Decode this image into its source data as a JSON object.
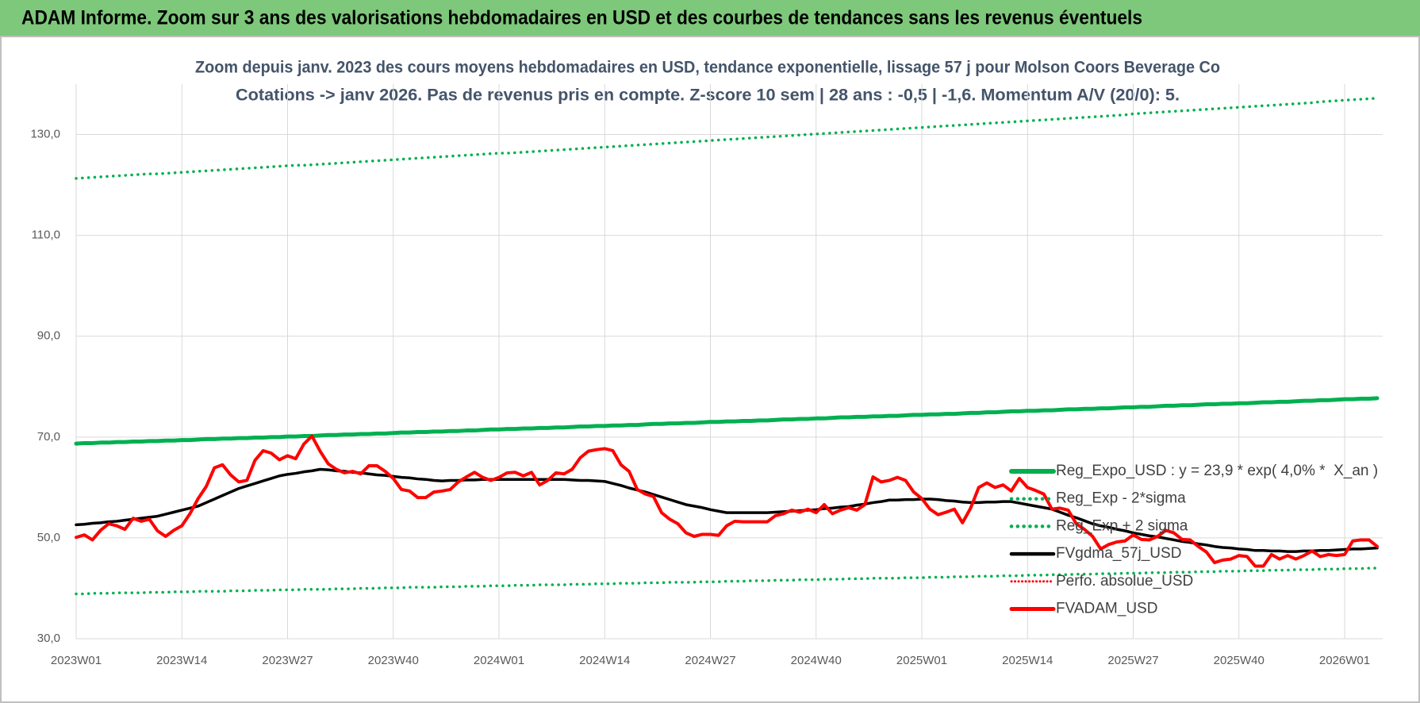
{
  "header": "ADAM Informe. Zoom sur 3 ans des valorisations hebdomadaires en USD et des courbes de tendances sans les revenus éventuels",
  "chart_data": {
    "type": "line",
    "title": "Zoom depuis janv. 2023 des cours moyens hebdomadaires en USD, tendance exponentielle, lissage 57 j pour Molson Coors Beverage Co",
    "subtitle": "Cotations -> janv 2026. Pas de revenus pris en compte. Z-score 10 sem | 28 ans : -0,5 | -1,6. Momentum A/V (20/0): 5.",
    "ylim": [
      30,
      140
    ],
    "yticks": [
      {
        "value": 30,
        "label": "30,0"
      },
      {
        "value": 50,
        "label": "50,0"
      },
      {
        "value": 70,
        "label": "70,0"
      },
      {
        "value": 90,
        "label": "90,0"
      },
      {
        "value": 110,
        "label": "110,0"
      },
      {
        "value": 130,
        "label": "130,0"
      }
    ],
    "grid": true,
    "legend": "right",
    "categories": [
      "2023W01",
      null,
      null,
      null,
      null,
      null,
      null,
      null,
      null,
      null,
      null,
      null,
      null,
      "2023W14",
      null,
      null,
      null,
      null,
      null,
      null,
      null,
      null,
      null,
      null,
      null,
      null,
      "2023W27",
      null,
      null,
      null,
      null,
      null,
      null,
      null,
      null,
      null,
      null,
      null,
      null,
      "2023W40",
      null,
      null,
      null,
      null,
      null,
      null,
      null,
      null,
      null,
      null,
      null,
      null,
      "2024W01",
      null,
      null,
      null,
      null,
      null,
      null,
      null,
      null,
      null,
      null,
      null,
      null,
      "2024W14",
      null,
      null,
      null,
      null,
      null,
      null,
      null,
      null,
      null,
      null,
      null,
      null,
      "2024W27",
      null,
      null,
      null,
      null,
      null,
      null,
      null,
      null,
      null,
      null,
      null,
      null,
      "2024W40",
      null,
      null,
      null,
      null,
      null,
      null,
      null,
      null,
      null,
      null,
      null,
      null,
      "2025W01",
      null,
      null,
      null,
      null,
      null,
      null,
      null,
      null,
      null,
      null,
      null,
      null,
      "2025W14",
      null,
      null,
      null,
      null,
      null,
      null,
      null,
      null,
      null,
      null,
      null,
      null,
      "2025W27",
      null,
      null,
      null,
      null,
      null,
      null,
      null,
      null,
      null,
      null,
      null,
      null,
      "2025W40",
      null,
      null,
      null,
      null,
      null,
      null,
      null,
      null,
      null,
      null,
      null,
      null,
      "2026W01",
      null,
      null,
      null,
      null
    ],
    "series": [
      {
        "name": "Reg_Expo_USD : y = 23,9 * exp( 4,0% *  X_an )",
        "color": "#00b050",
        "dash": "solid",
        "linewidth": 5,
        "values": [
          68.7,
          68.8,
          68.8,
          68.9,
          68.9,
          69.0,
          69.0,
          69.1,
          69.1,
          69.2,
          69.2,
          69.3,
          69.3,
          69.4,
          69.4,
          69.5,
          69.6,
          69.6,
          69.7,
          69.7,
          69.8,
          69.8,
          69.9,
          69.9,
          70.0,
          70.0,
          70.1,
          70.1,
          70.2,
          70.2,
          70.3,
          70.4,
          70.4,
          70.5,
          70.5,
          70.6,
          70.6,
          70.7,
          70.7,
          70.8,
          70.9,
          70.9,
          71.0,
          71.0,
          71.1,
          71.1,
          71.2,
          71.2,
          71.3,
          71.3,
          71.4,
          71.5,
          71.5,
          71.6,
          71.6,
          71.7,
          71.7,
          71.8,
          71.8,
          71.9,
          71.9,
          72.0,
          72.1,
          72.1,
          72.2,
          72.2,
          72.3,
          72.3,
          72.4,
          72.4,
          72.5,
          72.6,
          72.6,
          72.7,
          72.7,
          72.8,
          72.8,
          72.9,
          73.0,
          73.0,
          73.1,
          73.1,
          73.2,
          73.2,
          73.3,
          73.3,
          73.4,
          73.5,
          73.5,
          73.6,
          73.6,
          73.7,
          73.7,
          73.8,
          73.9,
          73.9,
          74.0,
          74.0,
          74.1,
          74.1,
          74.2,
          74.2,
          74.3,
          74.4,
          74.4,
          74.5,
          74.5,
          74.6,
          74.6,
          74.7,
          74.8,
          74.8,
          74.9,
          74.9,
          75.0,
          75.1,
          75.1,
          75.2,
          75.2,
          75.3,
          75.3,
          75.4,
          75.5,
          75.5,
          75.6,
          75.6,
          75.7,
          75.7,
          75.8,
          75.9,
          75.9,
          76.0,
          76.0,
          76.1,
          76.2,
          76.2,
          76.3,
          76.3,
          76.4,
          76.5,
          76.5,
          76.6,
          76.6,
          76.7,
          76.7,
          76.8,
          76.9,
          76.9,
          77.0,
          77.0,
          77.1,
          77.2,
          77.2,
          77.3,
          77.3,
          77.4,
          77.5,
          77.5,
          77.6,
          77.6,
          77.7
        ]
      },
      {
        "name": "Reg_Exp - 2*sigma",
        "color": "#00b050",
        "dash": "dotted",
        "linewidth": 3.5,
        "values": [
          38.9,
          38.9,
          39.0,
          39.0,
          39.0,
          39.1,
          39.1,
          39.1,
          39.1,
          39.2,
          39.2,
          39.2,
          39.3,
          39.3,
          39.3,
          39.4,
          39.4,
          39.4,
          39.4,
          39.5,
          39.5,
          39.5,
          39.6,
          39.6,
          39.6,
          39.7,
          39.7,
          39.7,
          39.8,
          39.8,
          39.8,
          39.8,
          39.9,
          39.9,
          39.9,
          40.0,
          40.0,
          40.0,
          40.1,
          40.1,
          40.1,
          40.2,
          40.2,
          40.2,
          40.2,
          40.3,
          40.3,
          40.3,
          40.4,
          40.4,
          40.4,
          40.5,
          40.5,
          40.5,
          40.6,
          40.6,
          40.6,
          40.7,
          40.7,
          40.7,
          40.7,
          40.8,
          40.8,
          40.8,
          40.9,
          40.9,
          40.9,
          41.0,
          41.0,
          41.0,
          41.1,
          41.1,
          41.1,
          41.2,
          41.2,
          41.2,
          41.2,
          41.3,
          41.3,
          41.3,
          41.4,
          41.4,
          41.4,
          41.5,
          41.5,
          41.5,
          41.6,
          41.6,
          41.6,
          41.7,
          41.7,
          41.7,
          41.8,
          41.8,
          41.8,
          41.9,
          41.9,
          41.9,
          42.0,
          42.0,
          42.0,
          42.0,
          42.1,
          42.1,
          42.1,
          42.2,
          42.2,
          42.2,
          42.3,
          42.3,
          42.3,
          42.4,
          42.4,
          42.4,
          42.5,
          42.5,
          42.5,
          42.6,
          42.6,
          42.6,
          42.7,
          42.7,
          42.7,
          42.8,
          42.8,
          42.8,
          42.9,
          42.9,
          42.9,
          43.0,
          43.0,
          43.0,
          43.1,
          43.1,
          43.1,
          43.2,
          43.2,
          43.2,
          43.3,
          43.3,
          43.3,
          43.4,
          43.4,
          43.4,
          43.5,
          43.5,
          43.5,
          43.6,
          43.6,
          43.6,
          43.7,
          43.7,
          43.7,
          43.8,
          43.8,
          43.8,
          43.9,
          43.9,
          43.9,
          44.0,
          44.0
        ]
      },
      {
        "name": "Reg_Exp + 2 sigma",
        "color": "#00b050",
        "dash": "dotted",
        "linewidth": 3.5,
        "values": [
          121.3,
          121.4,
          121.5,
          121.6,
          121.7,
          121.8,
          121.9,
          122.0,
          122.1,
          122.2,
          122.2,
          122.3,
          122.4,
          122.5,
          122.6,
          122.7,
          122.8,
          122.9,
          123.0,
          123.1,
          123.2,
          123.3,
          123.4,
          123.5,
          123.6,
          123.7,
          123.8,
          123.9,
          123.9,
          124.0,
          124.1,
          124.2,
          124.3,
          124.4,
          124.5,
          124.6,
          124.7,
          124.8,
          124.9,
          125.0,
          125.1,
          125.2,
          125.3,
          125.4,
          125.5,
          125.6,
          125.7,
          125.8,
          125.9,
          126.0,
          126.1,
          126.2,
          126.3,
          126.3,
          126.4,
          126.5,
          126.6,
          126.7,
          126.8,
          126.9,
          127.0,
          127.1,
          127.2,
          127.3,
          127.4,
          127.5,
          127.6,
          127.7,
          127.8,
          127.9,
          128.0,
          128.1,
          128.2,
          128.3,
          128.4,
          128.5,
          128.6,
          128.7,
          128.8,
          128.9,
          129.0,
          129.1,
          129.2,
          129.3,
          129.4,
          129.5,
          129.6,
          129.7,
          129.8,
          129.9,
          130.0,
          130.1,
          130.2,
          130.3,
          130.4,
          130.5,
          130.6,
          130.7,
          130.8,
          130.9,
          131.0,
          131.1,
          131.2,
          131.3,
          131.4,
          131.5,
          131.6,
          131.7,
          131.8,
          131.9,
          132.0,
          132.1,
          132.2,
          132.3,
          132.4,
          132.5,
          132.6,
          132.7,
          132.8,
          132.9,
          133.0,
          133.1,
          133.2,
          133.3,
          133.4,
          133.5,
          133.6,
          133.7,
          133.8,
          133.9,
          134.1,
          134.2,
          134.3,
          134.4,
          134.5,
          134.6,
          134.7,
          134.8,
          134.9,
          135.0,
          135.1,
          135.2,
          135.3,
          135.4,
          135.5,
          135.6,
          135.7,
          135.8,
          135.9,
          136.0,
          136.1,
          136.2,
          136.3,
          136.5,
          136.6,
          136.7,
          136.8,
          136.9,
          137.0,
          137.1,
          137.2
        ]
      },
      {
        "name": "FVgdma_57j_USD",
        "color": "#000000",
        "dash": "solid",
        "linewidth": 3.5,
        "values": [
          52.6,
          52.7,
          52.9,
          53.0,
          53.2,
          53.3,
          53.5,
          53.7,
          53.9,
          54.1,
          54.3,
          54.7,
          55.1,
          55.5,
          55.9,
          56.3,
          57.0,
          57.7,
          58.4,
          59.1,
          59.8,
          60.3,
          60.8,
          61.3,
          61.8,
          62.3,
          62.6,
          62.8,
          63.1,
          63.3,
          63.6,
          63.5,
          63.3,
          63.2,
          63.0,
          62.9,
          62.7,
          62.5,
          62.4,
          62.2,
          62.0,
          61.9,
          61.7,
          61.6,
          61.4,
          61.3,
          61.4,
          61.4,
          61.5,
          61.5,
          61.6,
          61.6,
          61.6,
          61.6,
          61.6,
          61.6,
          61.6,
          61.6,
          61.6,
          61.6,
          61.6,
          61.5,
          61.4,
          61.4,
          61.3,
          61.2,
          60.8,
          60.4,
          59.9,
          59.5,
          59.1,
          58.6,
          58.1,
          57.6,
          57.1,
          56.6,
          56.3,
          56.0,
          55.6,
          55.3,
          55.0,
          55.0,
          55.0,
          55.0,
          55.0,
          55.0,
          55.1,
          55.2,
          55.3,
          55.4,
          55.5,
          55.6,
          55.8,
          55.9,
          56.1,
          56.2,
          56.5,
          56.7,
          57.0,
          57.2,
          57.5,
          57.5,
          57.6,
          57.6,
          57.7,
          57.7,
          57.6,
          57.4,
          57.3,
          57.1,
          57.0,
          57.0,
          57.1,
          57.1,
          57.2,
          57.2,
          56.9,
          56.6,
          56.3,
          56.0,
          55.7,
          55.1,
          54.5,
          54.0,
          53.4,
          52.8,
          52.4,
          52.1,
          51.7,
          51.4,
          51.0,
          50.7,
          50.4,
          50.2,
          49.9,
          49.6,
          49.3,
          49.1,
          48.8,
          48.6,
          48.3,
          48.1,
          48.0,
          47.8,
          47.7,
          47.5,
          47.5,
          47.4,
          47.4,
          47.3,
          47.3,
          47.4,
          47.4,
          47.5,
          47.5,
          47.6,
          47.7,
          47.8,
          47.8,
          47.9,
          48.0
        ]
      },
      {
        "name": "Perfo. absolue_USD",
        "color": "#ff0000",
        "dash": "dotted",
        "linewidth": 2,
        "values": [
          null,
          null,
          null,
          null,
          null,
          null,
          null,
          null,
          null,
          null,
          null,
          null,
          null,
          null,
          null,
          null,
          null,
          null,
          null,
          null,
          null,
          null,
          null,
          null,
          null,
          null,
          null,
          null,
          null,
          null,
          null,
          null,
          null,
          null,
          null,
          null,
          null,
          null,
          null,
          null,
          null,
          null,
          null,
          null,
          null,
          null,
          null,
          null,
          null,
          null,
          null,
          null,
          null,
          null,
          null,
          null,
          null,
          null,
          null,
          null,
          null,
          null,
          null,
          null,
          null,
          null,
          null,
          null,
          null,
          null,
          null,
          null,
          null,
          null,
          null,
          null,
          null,
          null,
          null,
          null,
          null,
          null,
          null,
          null,
          null,
          null,
          null,
          null,
          null,
          null,
          null,
          null,
          null,
          null,
          null,
          null,
          null,
          null,
          null,
          null,
          null,
          null,
          null,
          null,
          null,
          null,
          null,
          null,
          null,
          null,
          null,
          null,
          null,
          null,
          null,
          null,
          null,
          null,
          null,
          null,
          null,
          null,
          null,
          null,
          null,
          null,
          null,
          null,
          null,
          null,
          null,
          null,
          null,
          null,
          null,
          null,
          null,
          null,
          null,
          null,
          null,
          null,
          null,
          null,
          null,
          null,
          null,
          null,
          null,
          null,
          null,
          null,
          null,
          null,
          null,
          null,
          null,
          null,
          null,
          null,
          null
        ]
      },
      {
        "name": "FVADAM_USD",
        "color": "#ff0000",
        "dash": "solid",
        "linewidth": 4,
        "values": [
          50.1,
          50.6,
          49.6,
          51.5,
          52.8,
          52.4,
          51.7,
          53.9,
          53.3,
          53.7,
          51.4,
          50.3,
          51.5,
          52.4,
          54.8,
          57.8,
          60.2,
          63.9,
          64.5,
          62.5,
          61.1,
          61.4,
          65.4,
          67.3,
          66.8,
          65.5,
          66.3,
          65.7,
          68.6,
          70.2,
          67.2,
          64.7,
          63.6,
          62.9,
          63.2,
          62.7,
          64.3,
          64.3,
          63.2,
          61.8,
          59.6,
          59.3,
          58.0,
          58.0,
          59.1,
          59.3,
          59.6,
          61.1,
          62.1,
          63.0,
          62.0,
          61.4,
          62.0,
          62.9,
          63.0,
          62.3,
          63.0,
          60.5,
          61.4,
          62.9,
          62.7,
          63.6,
          65.9,
          67.2,
          67.5,
          67.7,
          67.3,
          64.5,
          63.2,
          59.6,
          58.7,
          58.2,
          55.0,
          53.7,
          52.8,
          51.0,
          50.3,
          50.7,
          50.7,
          50.5,
          52.4,
          53.3,
          53.2,
          53.2,
          53.2,
          53.2,
          54.4,
          54.8,
          55.5,
          55.1,
          55.7,
          55.0,
          56.6,
          54.8,
          55.5,
          56.0,
          55.5,
          56.6,
          62.1,
          61.1,
          61.4,
          62.0,
          61.4,
          59.1,
          57.8,
          55.7,
          54.6,
          55.1,
          55.7,
          53.0,
          55.9,
          60.0,
          60.9,
          60.0,
          60.5,
          59.3,
          61.8,
          60.0,
          59.4,
          58.7,
          55.7,
          55.9,
          55.5,
          52.8,
          51.7,
          50.3,
          47.8,
          48.7,
          49.2,
          49.4,
          50.6,
          49.7,
          49.6,
          50.3,
          51.5,
          51.0,
          49.7,
          49.6,
          48.3,
          47.2,
          45.1,
          45.6,
          45.8,
          46.5,
          46.3,
          44.4,
          44.4,
          46.7,
          45.8,
          46.5,
          45.8,
          46.5,
          47.4,
          46.3,
          46.7,
          46.5,
          46.7,
          49.4,
          49.6,
          49.6,
          48.3
        ]
      }
    ]
  }
}
